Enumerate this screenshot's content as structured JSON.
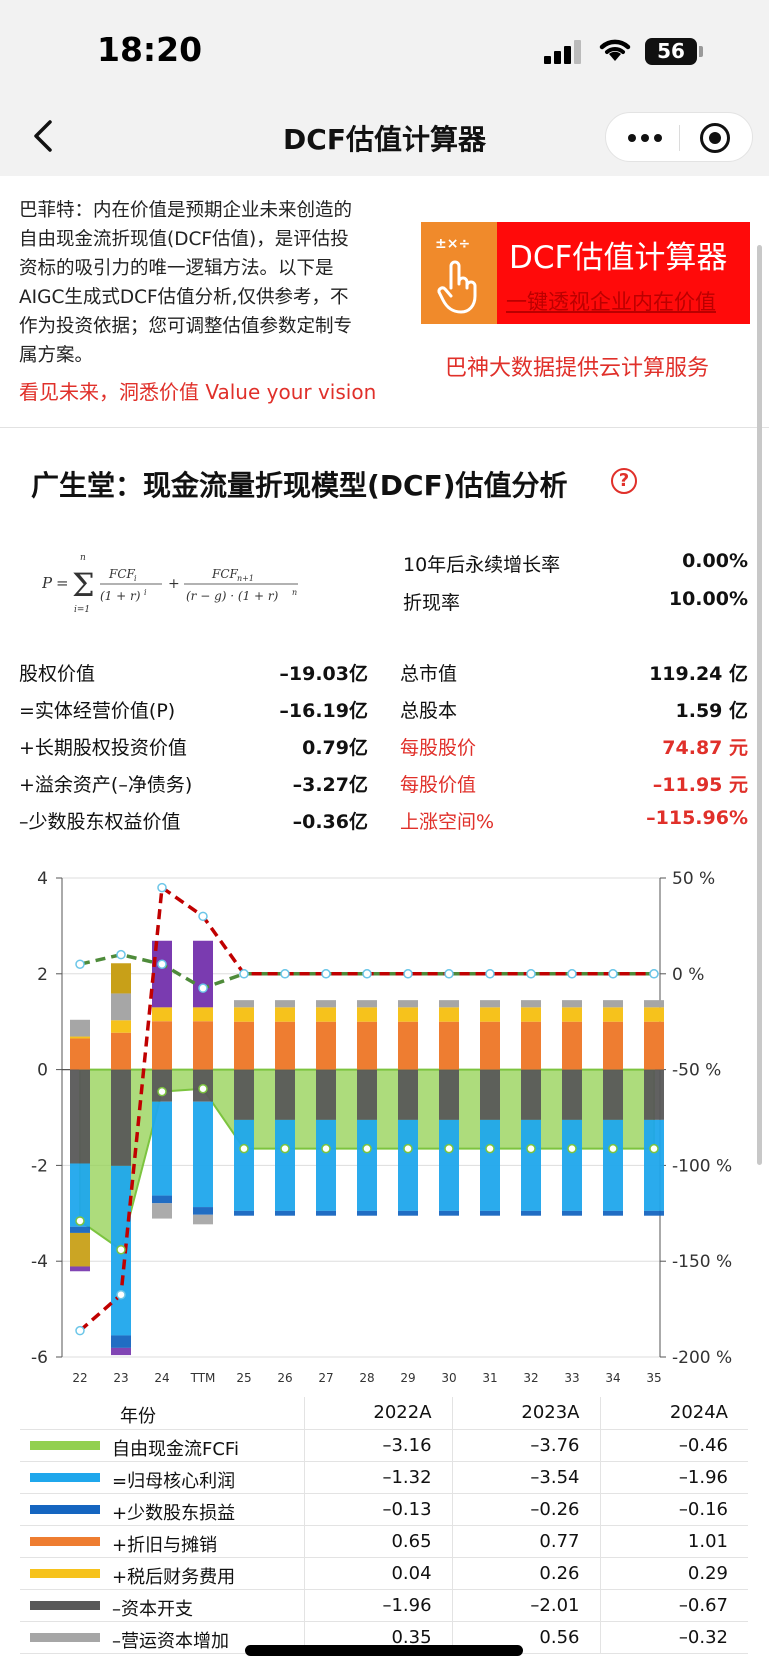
{
  "status": {
    "time": "18:20",
    "battery": "56"
  },
  "nav": {
    "title": "DCF估值计算器"
  },
  "intro": {
    "lines": [
      "巴菲特：内在价值是预期企业未来创造的",
      "自由现金流折现值(DCF估值)，是评估投",
      "资标的吸引力的唯一逻辑方法。以下是",
      "AIGC生成式DCF估值分析,仅供参考，不",
      "作为投资依据；您可调整估值参数定制专",
      "属方案。"
    ],
    "slogan": "看见未来，洞悉价值 Value your vision"
  },
  "banner": {
    "ops": "±×÷",
    "title": "DCF估值计算器",
    "subtitle": "一键透视企业内在价值",
    "cloud": "巴神大数据提供云计算服务"
  },
  "heading": {
    "title": "广生堂：现金流量折现模型(DCF)估值分析",
    "help": "?"
  },
  "params": {
    "growth_label": "10年后永续增长率",
    "growth_value": "0.00%",
    "discount_label": "折现率",
    "discount_value": "10.00%"
  },
  "valuation": {
    "left": [
      {
        "label": "股权价值",
        "value": "–19.03亿"
      },
      {
        "label": "=实体经营价值(P)",
        "value": "–16.19亿"
      },
      {
        "label": "+长期股权投资价值",
        "value": "0.79亿"
      },
      {
        "label": "+溢余资产(–净债务)",
        "value": "–3.27亿"
      },
      {
        "label": "–少数股东权益价值",
        "value": "–0.36亿"
      }
    ],
    "right": [
      {
        "label": "总市值",
        "value": "119.24 亿",
        "red": false
      },
      {
        "label": "总股本",
        "value": "1.59 亿",
        "red": false
      },
      {
        "label": "每股股价",
        "value": "74.87 元",
        "red": true
      },
      {
        "label": "每股价值",
        "value": "–11.95 元",
        "red": true
      },
      {
        "label": "上涨空间%",
        "value": "–115.96%",
        "red": true
      }
    ]
  },
  "chart_data": {
    "type": "bar",
    "categories": [
      "22",
      "23",
      "24",
      "TTM",
      "25",
      "26",
      "27",
      "28",
      "29",
      "30",
      "31",
      "32",
      "33",
      "34",
      "35"
    ],
    "left_axis": {
      "ticks": [
        "4",
        "2",
        "0",
        "-2",
        "-4",
        "-6"
      ],
      "ylim": [
        -6,
        4
      ]
    },
    "right_axis": {
      "ticks": [
        "50 %",
        "0 %",
        "-50 %",
        "-100 %",
        "-150 %",
        "-200 %"
      ],
      "ylim": [
        -200,
        50
      ]
    },
    "stacked_series": [
      {
        "key": "dep",
        "color": "#ee7d31",
        "values": [
          0.65,
          0.77,
          1.01,
          1.01,
          1.0,
          1.0,
          1.0,
          1.0,
          1.0,
          1.0,
          1.0,
          1.0,
          1.0,
          1.0,
          1.0
        ]
      },
      {
        "key": "tax",
        "color": "#f6c21c",
        "values": [
          0.04,
          0.26,
          0.29,
          0.29,
          0.3,
          0.3,
          0.3,
          0.3,
          0.3,
          0.3,
          0.3,
          0.3,
          0.3,
          0.3,
          0.3
        ]
      },
      {
        "key": "wc_pos",
        "color": "#a6a6a6",
        "values": [
          0.35,
          0.56,
          0,
          0,
          0.15,
          0.15,
          0.15,
          0.15,
          0.15,
          0.15,
          0.15,
          0.15,
          0.15,
          0.15,
          0.15
        ]
      },
      {
        "key": "gold",
        "color": "#c8a018",
        "values": [
          0,
          0.63,
          0,
          0,
          0,
          0,
          0,
          0,
          0,
          0,
          0,
          0,
          0,
          0,
          0
        ]
      },
      {
        "key": "purple",
        "color": "#7a3bb0",
        "values": [
          0,
          0,
          1.39,
          1.39,
          0,
          0,
          0,
          0,
          0,
          0,
          0,
          0,
          0,
          0,
          0
        ]
      },
      {
        "key": "capex",
        "color": "#595959",
        "values": [
          -1.96,
          -2.01,
          -0.67,
          -0.67,
          -1.05,
          -1.05,
          -1.05,
          -1.05,
          -1.05,
          -1.05,
          -1.05,
          -1.05,
          -1.05,
          -1.05,
          -1.05
        ]
      },
      {
        "key": "core",
        "color": "#1fa7ec",
        "values": [
          -1.32,
          -3.54,
          -1.96,
          -2.2,
          -1.9,
          -1.9,
          -1.9,
          -1.9,
          -1.9,
          -1.9,
          -1.9,
          -1.9,
          -1.9,
          -1.9,
          -1.9
        ]
      },
      {
        "key": "minor",
        "color": "#1565c0",
        "values": [
          -0.13,
          -0.26,
          -0.16,
          -0.16,
          -0.1,
          -0.1,
          -0.1,
          -0.1,
          -0.1,
          -0.1,
          -0.1,
          -0.1,
          -0.1,
          -0.1,
          -0.1
        ]
      },
      {
        "key": "wc_neg",
        "color": "#a6a6a6",
        "values": [
          0,
          0,
          -0.32,
          -0.2,
          0,
          0,
          0,
          0,
          0,
          0,
          0,
          0,
          0,
          0,
          0
        ]
      },
      {
        "key": "gold_neg",
        "color": "#c8a018",
        "values": [
          -0.7,
          0,
          0,
          0,
          0,
          0,
          0,
          0,
          0,
          0,
          0,
          0,
          0,
          0,
          0
        ]
      },
      {
        "key": "purple_neg",
        "color": "#7a3bb0",
        "values": [
          -0.1,
          -0.15,
          0,
          0,
          0,
          0,
          0,
          0,
          0,
          0,
          0,
          0,
          0,
          0,
          0
        ]
      }
    ],
    "fcf_area": {
      "color": "#92d050",
      "values": [
        -3.16,
        -3.76,
        -0.46,
        -0.4,
        -1.65,
        -1.65,
        -1.65,
        -1.65,
        -1.65,
        -1.65,
        -1.65,
        -1.65,
        -1.65,
        -1.65,
        -1.65
      ]
    },
    "red_dashed": {
      "color": "#c00000",
      "values": [
        -5.45,
        -4.7,
        3.8,
        3.2,
        2.0,
        2.0,
        2.0,
        2.0,
        2.0,
        2.0,
        2.0,
        2.0,
        2.0,
        2.0,
        2.0
      ]
    },
    "green_dashed": {
      "color": "#4e8b3a",
      "values": [
        2.2,
        2.4,
        2.2,
        1.7,
        2.0,
        2.0,
        2.0,
        2.0,
        2.0,
        2.0,
        2.0,
        2.0,
        2.0,
        2.0,
        2.0
      ]
    }
  },
  "table": {
    "headers": [
      "年份",
      "2022A",
      "2023A",
      "2024A"
    ],
    "rows": [
      {
        "label": "自由现金流FCFi",
        "color": "#92d050",
        "values": [
          "–3.16",
          "–3.76",
          "–0.46"
        ]
      },
      {
        "label": "=归母核心利润",
        "color": "#1fa7ec",
        "values": [
          "–1.32",
          "–3.54",
          "–1.96"
        ]
      },
      {
        "label": "+少数股东损益",
        "color": "#1565c0",
        "values": [
          "–0.13",
          "–0.26",
          "–0.16"
        ]
      },
      {
        "label": "+折旧与摊销",
        "color": "#ee7d31",
        "values": [
          "0.65",
          "0.77",
          "1.01"
        ]
      },
      {
        "label": "+税后财务费用",
        "color": "#f6c21c",
        "values": [
          "0.04",
          "0.26",
          "0.29"
        ]
      },
      {
        "label": "–资本开支",
        "color": "#595959",
        "values": [
          "–1.96",
          "–2.01",
          "–0.67"
        ]
      },
      {
        "label": "–营运资本增加",
        "color": "#a6a6a6",
        "values": [
          "0.35",
          "0.56",
          "–0.32"
        ]
      }
    ]
  }
}
